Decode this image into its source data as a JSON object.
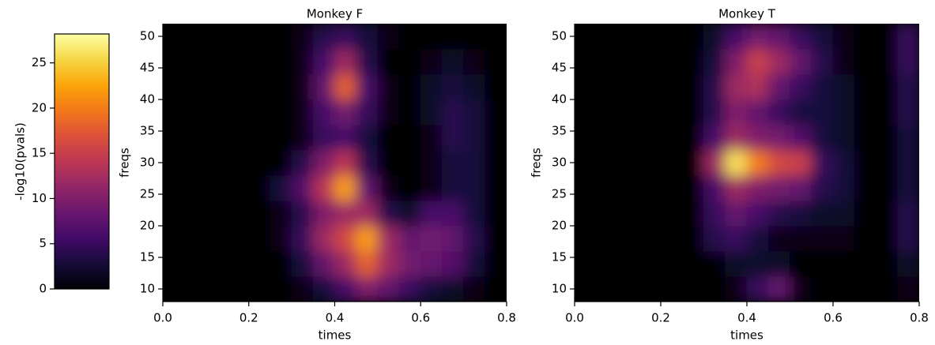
{
  "chart_data": [
    {
      "type": "heatmap",
      "title": "Monkey F",
      "xlabel": "times",
      "ylabel": "freqs",
      "cmap": "inferno",
      "colorbar": {
        "label": "-log10(pvals)",
        "lim": [
          0,
          28.2
        ],
        "ticks": [
          0,
          5,
          10,
          15,
          20,
          25
        ]
      },
      "x": [
        0.025,
        0.075,
        0.125,
        0.175,
        0.225,
        0.275,
        0.325,
        0.375,
        0.425,
        0.475,
        0.525,
        0.575,
        0.625,
        0.675,
        0.725,
        0.775
      ],
      "y": [
        10,
        14,
        18,
        22,
        26,
        30,
        34,
        38,
        42,
        46,
        50
      ],
      "values": [
        [
          0,
          0,
          0,
          0,
          0,
          0,
          1,
          3,
          6,
          10,
          8,
          5,
          3,
          2,
          1,
          0
        ],
        [
          0,
          0,
          0,
          0,
          0,
          0,
          3,
          8,
          12,
          18,
          12,
          9,
          8,
          7,
          3,
          0
        ],
        [
          0,
          0,
          0,
          0,
          0,
          1,
          5,
          12,
          16,
          22,
          12,
          8,
          9,
          8,
          4,
          0
        ],
        [
          0,
          0,
          0,
          0,
          0,
          1,
          4,
          10,
          12,
          12,
          4,
          2,
          6,
          6,
          3,
          0
        ],
        [
          0,
          0,
          0,
          0,
          0,
          3,
          7,
          14,
          22,
          8,
          1,
          0,
          1,
          3,
          3,
          0
        ],
        [
          0,
          0,
          0,
          0,
          0,
          0,
          4,
          10,
          14,
          4,
          0,
          0,
          1,
          3,
          3,
          0
        ],
        [
          0,
          0,
          0,
          0,
          0,
          0,
          1,
          5,
          6,
          3,
          0,
          0,
          1,
          4,
          3,
          0
        ],
        [
          0,
          0,
          0,
          0,
          0,
          0,
          1,
          6,
          9,
          5,
          1,
          0,
          2,
          4,
          3,
          0
        ],
        [
          0,
          0,
          0,
          0,
          0,
          0,
          1,
          8,
          18,
          6,
          1,
          0,
          2,
          3,
          2,
          0
        ],
        [
          0,
          0,
          0,
          0,
          0,
          0,
          1,
          6,
          12,
          4,
          0,
          0,
          1,
          2,
          1,
          0
        ],
        [
          0,
          0,
          0,
          0,
          0,
          0,
          1,
          4,
          5,
          3,
          1,
          0,
          0,
          0,
          0,
          0
        ]
      ],
      "xlim": [
        0,
        0.8
      ],
      "ylim": [
        8,
        52
      ],
      "xticks": [
        {
          "value": 0,
          "label": "0.0"
        },
        0.2,
        0.4,
        0.6,
        0.8
      ],
      "yticks": [
        10,
        15,
        20,
        25,
        30,
        35,
        40,
        45,
        50
      ]
    },
    {
      "type": "heatmap",
      "title": "Monkey T",
      "xlabel": "times",
      "ylabel": "freqs",
      "cmap": "inferno",
      "x": [
        0.025,
        0.075,
        0.125,
        0.175,
        0.225,
        0.275,
        0.325,
        0.375,
        0.425,
        0.475,
        0.525,
        0.575,
        0.625,
        0.675,
        0.725,
        0.775
      ],
      "y": [
        10,
        14,
        18,
        22,
        26,
        30,
        34,
        38,
        42,
        46,
        50
      ],
      "values": [
        [
          0,
          0,
          0,
          0,
          0,
          0,
          0,
          1,
          5,
          8,
          1,
          0,
          0,
          0,
          0,
          1
        ],
        [
          0,
          0,
          0,
          0,
          0,
          0,
          0,
          2,
          2,
          2,
          0,
          0,
          0,
          0,
          0,
          2
        ],
        [
          0,
          0,
          0,
          0,
          0,
          0,
          4,
          5,
          3,
          1,
          1,
          1,
          1,
          0,
          0,
          4
        ],
        [
          0,
          0,
          0,
          0,
          0,
          0,
          5,
          8,
          6,
          4,
          3,
          2,
          2,
          0,
          0,
          4
        ],
        [
          0,
          0,
          0,
          0,
          0,
          0,
          6,
          12,
          10,
          9,
          8,
          4,
          3,
          0,
          0,
          3
        ],
        [
          0,
          0,
          0,
          0,
          0,
          0,
          12,
          26,
          20,
          16,
          15,
          5,
          3,
          0,
          0,
          3
        ],
        [
          0,
          0,
          0,
          0,
          0,
          0,
          6,
          12,
          10,
          9,
          7,
          3,
          2,
          0,
          0,
          3
        ],
        [
          0,
          0,
          0,
          0,
          0,
          0,
          4,
          10,
          8,
          5,
          3,
          3,
          2,
          0,
          0,
          4
        ],
        [
          0,
          0,
          0,
          0,
          0,
          0,
          4,
          12,
          13,
          8,
          5,
          3,
          2,
          0,
          0,
          4
        ],
        [
          0,
          0,
          0,
          0,
          0,
          0,
          3,
          10,
          15,
          12,
          8,
          4,
          1,
          0,
          0,
          5
        ],
        [
          0,
          0,
          0,
          0,
          0,
          0,
          2,
          6,
          9,
          8,
          5,
          3,
          1,
          0,
          0,
          5
        ]
      ],
      "xlim": [
        0,
        0.8
      ],
      "ylim": [
        8,
        52
      ],
      "xticks": [
        {
          "value": 0,
          "label": "0.0"
        },
        0.2,
        0.4,
        0.6,
        0.8
      ],
      "yticks": [
        10,
        15,
        20,
        25,
        30,
        35,
        40,
        45,
        50
      ]
    }
  ]
}
